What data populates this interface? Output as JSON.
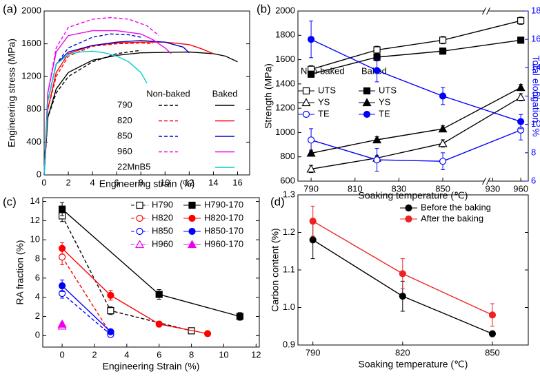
{
  "chart_data": [
    {
      "type": "line",
      "label": "(a)",
      "xlabel": "Engineering strain (%)",
      "ylabel": "Engineering stress (MPa)",
      "xlim": [
        0,
        17
      ],
      "xticks": [
        0,
        2,
        4,
        6,
        8,
        10,
        12,
        14,
        16
      ],
      "ylim": [
        0,
        2000
      ],
      "yticks": [
        0,
        400,
        800,
        1200,
        1600,
        2000
      ],
      "legend_columns": [
        "Non-baked",
        "Baked"
      ],
      "line_styles": [
        "dashed",
        "solid"
      ],
      "series": [
        {
          "name": "790",
          "color": "#000000",
          "curves": [
            {
              "x": [
                0,
                0.3,
                1,
                2,
                4,
                6,
                8
              ],
              "y": [
                0,
                700,
                1000,
                1200,
                1380,
                1480,
                1520
              ]
            },
            {
              "x": [
                0,
                0.3,
                1,
                2,
                4,
                6,
                8,
                12,
                14,
                15,
                16
              ],
              "y": [
                0,
                700,
                1050,
                1250,
                1400,
                1460,
                1490,
                1500,
                1480,
                1450,
                1380
              ]
            }
          ]
        },
        {
          "name": "820",
          "color": "#ff0000",
          "curves": [
            {
              "x": [
                0,
                0.3,
                1,
                2,
                4,
                6,
                8,
                9
              ],
              "y": [
                0,
                800,
                1200,
                1450,
                1570,
                1600,
                1610,
                1600
              ]
            },
            {
              "x": [
                0,
                0.3,
                1,
                2,
                4,
                6,
                8,
                10,
                12,
                13,
                14
              ],
              "y": [
                0,
                800,
                1250,
                1480,
                1580,
                1610,
                1620,
                1620,
                1590,
                1540,
                1480
              ]
            }
          ]
        },
        {
          "name": "850",
          "color": "#0000cc",
          "curves": [
            {
              "x": [
                0,
                0.3,
                1,
                2,
                4,
                5.5,
                7,
                8
              ],
              "y": [
                0,
                900,
                1350,
                1550,
                1680,
                1720,
                1710,
                1680
              ]
            },
            {
              "x": [
                0,
                0.3,
                1,
                2,
                4,
                6,
                8,
                10,
                11.5,
                12
              ],
              "y": [
                0,
                900,
                1350,
                1500,
                1580,
                1620,
                1640,
                1620,
                1560,
                1490
              ]
            }
          ]
        },
        {
          "name": "960",
          "color": "#ee00ee",
          "curves": [
            {
              "x": [
                0,
                0.3,
                1,
                2,
                4,
                5.5,
                7,
                8.5,
                9.5
              ],
              "y": [
                0,
                1000,
                1550,
                1800,
                1900,
                1920,
                1900,
                1820,
                1700
              ]
            },
            {
              "x": [
                0,
                0.3,
                1,
                2,
                4,
                6,
                8,
                9,
                10,
                10.5
              ],
              "y": [
                0,
                1000,
                1500,
                1700,
                1760,
                1760,
                1720,
                1650,
                1550,
                1480
              ]
            }
          ]
        },
        {
          "name": "22MnB5",
          "color": "#00cccc",
          "curves": [
            null,
            {
              "x": [
                0,
                0.3,
                1,
                2,
                3,
                4,
                5,
                6,
                7,
                8,
                8.5
              ],
              "y": [
                0,
                900,
                1350,
                1470,
                1500,
                1510,
                1490,
                1450,
                1380,
                1250,
                1120
              ]
            }
          ]
        }
      ]
    },
    {
      "type": "line",
      "label": "(b)",
      "xlabel": "Soaking temperature (℃)",
      "ylabel": "Strength (MPa)",
      "y2label": "Total elongation, %",
      "y2color": "#0000ff",
      "x_segments": [
        [
          784,
          869
        ],
        [
          925,
          968
        ]
      ],
      "xticks": [
        790,
        810,
        830,
        850,
        930,
        960
      ],
      "ylim": [
        600,
        2000
      ],
      "yticks": [
        600,
        800,
        1000,
        1200,
        1400,
        1600,
        1800,
        2000
      ],
      "y2lim": [
        6,
        18
      ],
      "y2ticks": [
        6,
        8,
        10,
        12,
        14,
        16,
        18
      ],
      "x": [
        790,
        820,
        850,
        960
      ],
      "groups": [
        {
          "name": "Non-baked",
          "filled": false,
          "series": [
            {
              "name": "UTS",
              "color": "#000000",
              "marker": "square",
              "values": [
                1520,
                1680,
                1760,
                1920
              ],
              "errors": [
                30,
                30,
                30,
                30
              ]
            },
            {
              "name": "YS",
              "color": "#000000",
              "marker": "triangle",
              "values": [
                700,
                790,
                910,
                1290
              ],
              "errors": [
                30,
                20,
                30,
                30
              ]
            },
            {
              "name": "TE",
              "color": "#0000ff",
              "marker": "circle",
              "axis": "y2",
              "values": [
                8.9,
                7.5,
                7.4,
                9.6
              ],
              "errors": [
                0.8,
                0.8,
                0.6,
                0.7
              ]
            }
          ]
        },
        {
          "name": "Baked",
          "filled": true,
          "series": [
            {
              "name": "UTS",
              "color": "#000000",
              "marker": "square",
              "values": [
                1480,
                1620,
                1670,
                1760
              ],
              "errors": [
                25,
                30,
                25,
                25
              ]
            },
            {
              "name": "YS",
              "color": "#000000",
              "marker": "triangle",
              "values": [
                830,
                940,
                1030,
                1370
              ],
              "errors": [
                25,
                25,
                25,
                25
              ]
            },
            {
              "name": "TE",
              "color": "#0000ff",
              "marker": "circle",
              "axis": "y2",
              "values": [
                16,
                13.8,
                12,
                10.2
              ],
              "errors": [
                1.3,
                0.8,
                0.6,
                0.5
              ]
            }
          ]
        }
      ]
    },
    {
      "type": "line",
      "label": "(c)",
      "xlabel": "Engineering Strain (%)",
      "ylabel": "RA fraction (%)",
      "xlim": [
        -1.2,
        12.2
      ],
      "xticks": [
        0,
        2,
        4,
        6,
        8,
        10,
        12
      ],
      "ylim": [
        -1.2,
        14.4
      ],
      "yticks": [
        0,
        2,
        4,
        6,
        8,
        10,
        12,
        14
      ],
      "legend_ncol": 2,
      "series": [
        {
          "name": "H790",
          "color": "#000000",
          "marker": "square",
          "filled": false,
          "line_style": "dashed",
          "x": [
            0,
            3,
            8
          ],
          "values": [
            12.5,
            2.6,
            0.5
          ],
          "errors": [
            0.6,
            0.4,
            0.1
          ]
        },
        {
          "name": "H790-170",
          "color": "#000000",
          "marker": "square",
          "filled": true,
          "line_style": "solid",
          "x": [
            0,
            6,
            11
          ],
          "values": [
            13.2,
            4.3,
            2.0
          ],
          "errors": [
            0.7,
            0.5,
            0.4
          ]
        },
        {
          "name": "H820",
          "color": "#ff0000",
          "marker": "circle",
          "filled": false,
          "line_style": "dashed",
          "x": [
            0,
            3
          ],
          "values": [
            8.2,
            0.2
          ],
          "errors": [
            0.8,
            0.2
          ]
        },
        {
          "name": "H820-170",
          "color": "#ff0000",
          "marker": "circle",
          "filled": true,
          "line_style": "solid",
          "x": [
            0,
            3,
            6,
            9
          ],
          "values": [
            9.1,
            4.2,
            1.2,
            0.2
          ],
          "errors": [
            0.6,
            0.5,
            0.3,
            0.1
          ]
        },
        {
          "name": "H850",
          "color": "#0000ff",
          "marker": "circle",
          "filled": false,
          "line_style": "dashed",
          "x": [
            0,
            3
          ],
          "values": [
            4.4,
            0.1
          ],
          "errors": [
            0.5,
            0.1
          ]
        },
        {
          "name": "H850-170",
          "color": "#0000ff",
          "marker": "circle",
          "filled": true,
          "line_style": "solid",
          "x": [
            0,
            3
          ],
          "values": [
            5.2,
            0.4
          ],
          "errors": [
            0.6,
            0.1
          ]
        },
        {
          "name": "H960",
          "color": "#ee00ee",
          "marker": "triangle",
          "filled": false,
          "line_style": "dashed",
          "x": [
            0
          ],
          "values": [
            1.0
          ],
          "errors": [
            0.2
          ]
        },
        {
          "name": "H960-170",
          "color": "#ee00ee",
          "marker": "triangle",
          "filled": true,
          "line_style": "solid",
          "x": [
            0
          ],
          "values": [
            1.2
          ],
          "errors": [
            0.2
          ]
        }
      ]
    },
    {
      "type": "line",
      "label": "(d)",
      "xlabel": "Soaking temperature (℃)",
      "ylabel": "Carbon content (%)",
      "xlim": [
        785,
        862
      ],
      "xticks": [
        790,
        820,
        850
      ],
      "ylim": [
        0.9,
        1.3
      ],
      "yticks": [
        0.9,
        {
          "value": 1,
          "label": "1.0"
        },
        1.1,
        1.2,
        1.3
      ],
      "legend_ncol": 1,
      "x": [
        790,
        820,
        850
      ],
      "series": [
        {
          "name": "Before the baking",
          "color": "#000000",
          "marker": "circle",
          "filled": true,
          "line_style": "solid",
          "values": [
            1.18,
            1.03,
            0.93
          ],
          "errors": [
            0.05,
            0.04,
            0.005
          ]
        },
        {
          "name": "After the baking",
          "color": "#ee2222",
          "marker": "circle",
          "filled": true,
          "line_style": "solid",
          "values": [
            1.23,
            1.09,
            0.98
          ],
          "errors": [
            0.04,
            0.04,
            0.03
          ]
        }
      ]
    }
  ]
}
